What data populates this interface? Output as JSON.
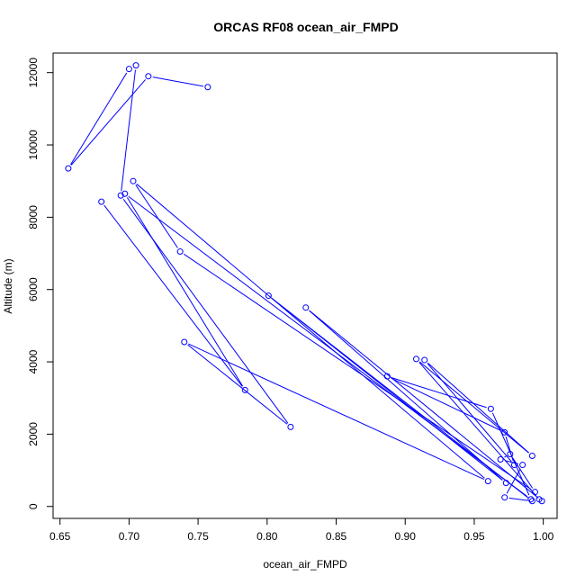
{
  "chart_data": {
    "type": "line",
    "title": "ORCAS RF08 ocean_air_FMPD",
    "xlabel": "ocean_air_FMPD",
    "ylabel": "Altitude (m)",
    "xlim": [
      0.645,
      1.01
    ],
    "ylim": [
      -330,
      12540
    ],
    "xticks": [
      0.65,
      0.7,
      0.75,
      0.8,
      0.85,
      0.9,
      0.95,
      1.0
    ],
    "xtick_labels": [
      "0.65",
      "0.70",
      "0.75",
      "0.80",
      "0.85",
      "0.90",
      "0.95",
      "1.00"
    ],
    "yticks": [
      0,
      2000,
      4000,
      6000,
      8000,
      10000,
      12000
    ],
    "ytick_labels": [
      "0",
      "2000",
      "4000",
      "6000",
      "8000",
      "10000",
      "12000"
    ],
    "grid": false,
    "series": [
      {
        "color": "#0000ff",
        "marker": "open-circle",
        "x": [
          0.757,
          0.714,
          0.656,
          0.7,
          0.705,
          0.694,
          0.817,
          0.74,
          0.96,
          0.703,
          0.737,
          0.994,
          0.976,
          0.969,
          0.985,
          0.972,
          0.992,
          0.801,
          0.973,
          0.828,
          0.999,
          0.997,
          0.908,
          0.992,
          0.914,
          0.979,
          0.972,
          0.887,
          0.962,
          0.991,
          0.697,
          0.784,
          0.68
        ],
        "y": [
          11600,
          11900,
          9350,
          12100,
          12200,
          8600,
          2200,
          4550,
          700,
          9000,
          7050,
          400,
          1450,
          1300,
          1150,
          250,
          150,
          5830,
          650,
          5500,
          150,
          200,
          4080,
          1400,
          4050,
          1150,
          2050,
          3600,
          2700,
          200,
          8650,
          3220,
          8430
        ]
      }
    ]
  }
}
